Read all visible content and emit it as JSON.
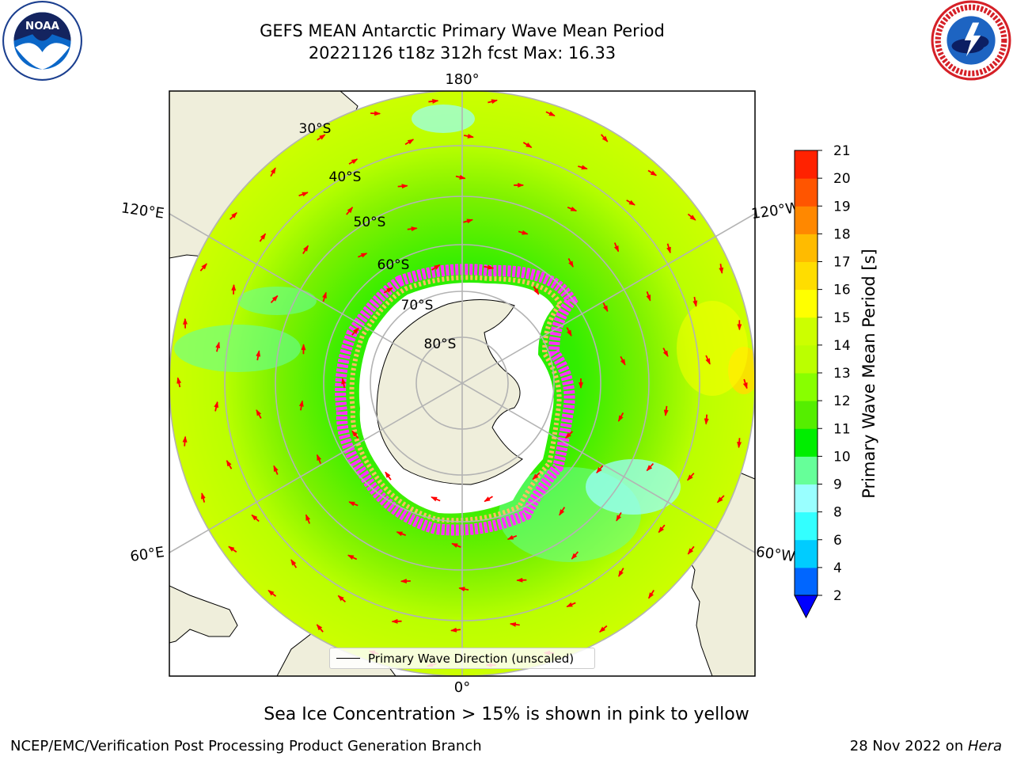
{
  "header": {
    "title_line1": "GEFS MEAN Antarctic Primary Wave Mean Period",
    "title_line2": "20221126 t18z 312h fcst   Max: 16.33"
  },
  "logos": {
    "left": {
      "icon": "noaa-logo",
      "text": "NOAA"
    },
    "right": {
      "icon": "national-weather-service-logo"
    }
  },
  "map": {
    "projection": "south-polar-stereographic",
    "longitude_labels": [
      "180°",
      "120°E",
      "120°W",
      "60°E",
      "60°W",
      "0°"
    ],
    "latitude_labels": [
      "30°S",
      "40°S",
      "50°S",
      "60°S",
      "70°S",
      "80°S"
    ],
    "legend": {
      "label": "Primary Wave Direction (unscaled)"
    },
    "colors": {
      "land": "#efeedb",
      "sea_ice": "#ffffff",
      "arrow": "#ff0000"
    }
  },
  "colorbar": {
    "label": "Primary Wave Mean Period [s]",
    "ticks": [
      "2",
      "4",
      "6",
      "8",
      "9",
      "10",
      "11",
      "12",
      "13",
      "14",
      "15",
      "16",
      "17",
      "18",
      "19",
      "20",
      "21"
    ],
    "colors": [
      "#0066ff",
      "#00ccff",
      "#33ffff",
      "#99ffff",
      "#66ff99",
      "#00ee00",
      "#55ee00",
      "#88ff00",
      "#bbff00",
      "#ccff00",
      "#ffff00",
      "#ffdd00",
      "#ffbb00",
      "#ff8800",
      "#ff5500",
      "#ff2200"
    ],
    "extend_color": "#0000ff"
  },
  "caption": "Sea Ice Concentration > 15% is shown in pink to yellow",
  "footer": {
    "left": "NCEP/EMC/Verification Post Processing Product Generation Branch",
    "right_date": "28 Nov 2022 on ",
    "right_host": "Hera"
  }
}
